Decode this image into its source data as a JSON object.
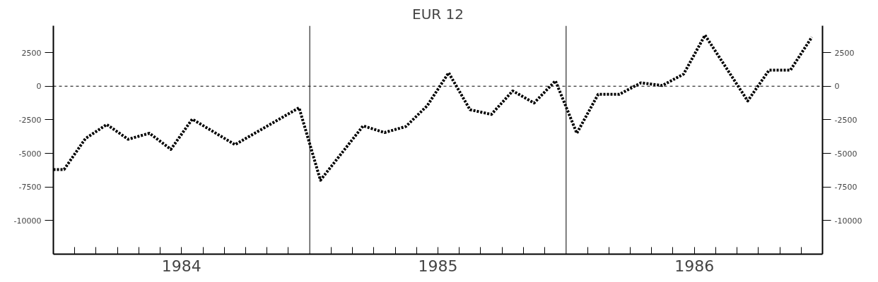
{
  "chart_data": {
    "type": "line",
    "title": "EUR 12",
    "x": [
      1984.0,
      1984.0417,
      1984.125,
      1984.2083,
      1984.2917,
      1984.375,
      1984.4583,
      1984.5417,
      1984.7083,
      1984.9583,
      1985.0417,
      1985.2083,
      1985.2917,
      1985.375,
      1985.4583,
      1985.5417,
      1985.625,
      1985.7083,
      1985.7917,
      1985.875,
      1985.9583,
      1986.0417,
      1986.125,
      1986.2083,
      1986.2917,
      1986.375,
      1986.4583,
      1986.5417,
      1986.7083,
      1986.7917,
      1986.875,
      1986.9583
    ],
    "series": [
      {
        "color": "#000000",
        "values": [
          -6200,
          -6200,
          -3900,
          -2850,
          -3950,
          -3500,
          -4700,
          -2450,
          -4350,
          -1600,
          -7000,
          -2950,
          -3450,
          -3000,
          -1450,
          1000,
          -1750,
          -2100,
          -350,
          -1250,
          400,
          -3500,
          -600,
          -600,
          250,
          50,
          900,
          3800,
          -1100,
          1200,
          1200,
          3650
        ]
      }
    ],
    "xlim": [
      1984,
      1987
    ],
    "xticks": [
      {
        "value": 1984.0833,
        "label": null
      },
      {
        "value": 1984.1667,
        "label": null
      },
      {
        "value": 1984.25,
        "label": null
      },
      {
        "value": 1984.3333,
        "label": null
      },
      {
        "value": 1984.4167,
        "label": null
      },
      {
        "value": 1984.5,
        "label": "1984"
      },
      {
        "value": 1984.5833,
        "label": null
      },
      {
        "value": 1984.6667,
        "label": null
      },
      {
        "value": 1984.75,
        "label": null
      },
      {
        "value": 1984.8333,
        "label": null
      },
      {
        "value": 1984.9167,
        "label": null
      },
      {
        "value": 1985.0833,
        "label": null
      },
      {
        "value": 1985.1667,
        "label": null
      },
      {
        "value": 1985.25,
        "label": null
      },
      {
        "value": 1985.3333,
        "label": null
      },
      {
        "value": 1985.4167,
        "label": null
      },
      {
        "value": 1985.5,
        "label": "1985"
      },
      {
        "value": 1985.5833,
        "label": null
      },
      {
        "value": 1985.6667,
        "label": null
      },
      {
        "value": 1985.75,
        "label": null
      },
      {
        "value": 1985.8333,
        "label": null
      },
      {
        "value": 1985.9167,
        "label": null
      },
      {
        "value": 1986.0833,
        "label": null
      },
      {
        "value": 1986.1667,
        "label": null
      },
      {
        "value": 1986.25,
        "label": null
      },
      {
        "value": 1986.3333,
        "label": null
      },
      {
        "value": 1986.4167,
        "label": null
      },
      {
        "value": 1986.5,
        "label": "1986"
      },
      {
        "value": 1986.5833,
        "label": null
      },
      {
        "value": 1986.6667,
        "label": null
      },
      {
        "value": 1986.75,
        "label": null
      },
      {
        "value": 1986.8333,
        "label": null
      },
      {
        "value": 1986.9167,
        "label": null
      }
    ],
    "ylim": [
      -12500,
      4500
    ],
    "yticks": [
      2500,
      0,
      -2500,
      -5000,
      -7500,
      -10000
    ],
    "y2lim": [
      -12500,
      4500
    ],
    "y2ticks": [
      2500,
      0,
      -2500,
      -5000,
      -7500,
      -10000
    ],
    "ref_lines": [
      {
        "axis": "y",
        "value": 0,
        "line_style": "dashed",
        "color": "#000000"
      },
      {
        "axis": "x",
        "value": 1985,
        "line_style": "solid",
        "color": "#000000"
      },
      {
        "axis": "x",
        "value": 1986,
        "line_style": "solid",
        "color": "#000000"
      }
    ],
    "grid": false,
    "marker": "none",
    "line_style": "dotted"
  }
}
